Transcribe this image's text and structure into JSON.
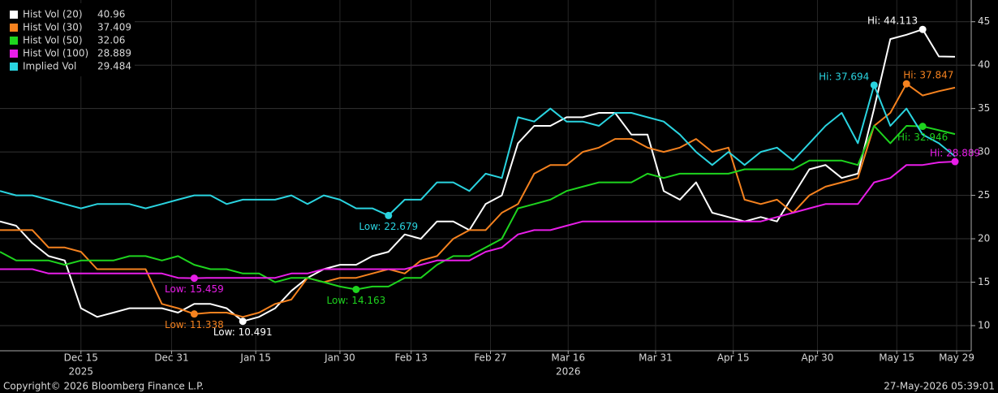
{
  "chart_data": {
    "type": "line",
    "series": [
      {
        "name": "Hist Vol (20)",
        "color": "#ffffff",
        "values": [
          22,
          21.5,
          19.5,
          18,
          17.5,
          12,
          11,
          11.5,
          12,
          12,
          12,
          11.5,
          12.5,
          12.5,
          12,
          10.491,
          11,
          12,
          14,
          15.5,
          16.5,
          17,
          17,
          18,
          18.5,
          20.5,
          20,
          22,
          22,
          21,
          24,
          25,
          31,
          33,
          33,
          34,
          34,
          34.5,
          34.5,
          32,
          32,
          25.5,
          24.5,
          26.5,
          23,
          22.5,
          22,
          22.5,
          22,
          25,
          28,
          28.5,
          27,
          27.5,
          35,
          43,
          43.5,
          44.113,
          41,
          40.96
        ],
        "markers": [
          {
            "x": 15,
            "value": 10.491,
            "label": "Low: 10.491"
          },
          {
            "x": 57,
            "value": 44.113,
            "label": "Hi: 44.113"
          }
        ]
      },
      {
        "name": "Hist Vol (30)",
        "color": "#f5821f",
        "values": [
          21,
          21,
          21,
          19,
          19,
          18.5,
          16.5,
          16.5,
          16.5,
          16.5,
          12.5,
          12,
          11.338,
          11.5,
          11.5,
          11,
          11.5,
          12.5,
          13,
          15.5,
          15,
          15.5,
          15.5,
          16,
          16.5,
          16,
          17.5,
          18,
          20,
          21,
          21,
          23,
          24,
          27.5,
          28.5,
          28.5,
          30,
          30.5,
          31.5,
          31.5,
          30.5,
          30,
          30.5,
          31.5,
          30,
          30.5,
          24.5,
          24,
          24.5,
          23,
          25,
          26,
          26.5,
          27,
          33,
          34.5,
          37.847,
          36.5,
          37,
          37.409
        ],
        "markers": [
          {
            "x": 12,
            "value": 11.338,
            "label": "Low: 11.338"
          },
          {
            "x": 56,
            "value": 37.847,
            "label": "Hi: 37.847"
          }
        ]
      },
      {
        "name": "Hist Vol (50)",
        "color": "#1ed41e",
        "values": [
          18.5,
          17.5,
          17.5,
          17.5,
          17,
          17.5,
          17.5,
          17.5,
          18,
          18,
          17.5,
          18,
          17,
          16.5,
          16.5,
          16,
          16,
          15,
          15.5,
          15.5,
          15,
          14.5,
          14.163,
          14.5,
          14.5,
          15.5,
          15.5,
          17,
          18,
          18,
          19,
          20,
          23.5,
          24,
          24.5,
          25.5,
          26,
          26.5,
          26.5,
          26.5,
          27.5,
          27,
          27.5,
          27.5,
          27.5,
          27.5,
          28,
          28,
          28,
          28,
          29,
          29,
          29,
          28.5,
          33,
          31,
          33,
          32.946,
          32.5,
          32.06
        ],
        "markers": [
          {
            "x": 22,
            "value": 14.163,
            "label": "Low: 14.163"
          },
          {
            "x": 57,
            "value": 32.946,
            "label": "Hi: 32.946"
          }
        ]
      },
      {
        "name": "Hist Vol (100)",
        "color": "#e81ee8",
        "values": [
          16.5,
          16.5,
          16.5,
          16,
          16,
          16,
          16,
          16,
          16,
          16,
          16,
          15.5,
          15.459,
          15.5,
          15.5,
          15.5,
          15.5,
          15.5,
          16,
          16,
          16.5,
          16.5,
          16.5,
          16.5,
          16.5,
          16.5,
          17,
          17.5,
          17.5,
          17.5,
          18.5,
          19,
          20.5,
          21,
          21,
          21.5,
          22,
          22,
          22,
          22,
          22,
          22,
          22,
          22,
          22,
          22,
          22,
          22,
          22.5,
          23,
          23.5,
          24,
          24,
          24,
          26.5,
          27,
          28.5,
          28.5,
          28.8,
          28.889
        ],
        "markers": [
          {
            "x": 12,
            "value": 15.459,
            "label": "Low: 15.459"
          },
          {
            "x": 59,
            "value": 28.889,
            "label": "Hi: 28.889"
          }
        ]
      },
      {
        "name": "Implied Vol",
        "color": "#2ad4e0",
        "values": [
          25.5,
          25,
          25,
          24.5,
          24,
          23.5,
          24,
          24,
          24,
          23.5,
          24,
          24.5,
          25,
          25,
          24,
          24.5,
          24.5,
          24.5,
          25,
          24,
          25,
          24.5,
          23.5,
          23.5,
          22.679,
          24.5,
          24.5,
          26.5,
          26.5,
          25.5,
          27.5,
          27,
          34,
          33.5,
          35,
          33.5,
          33.5,
          33,
          34.5,
          34.5,
          34,
          33.5,
          32,
          30,
          28.5,
          30,
          28.5,
          30,
          30.5,
          29,
          31,
          33,
          34.5,
          31,
          37.694,
          33,
          35,
          32,
          31,
          29.484
        ],
        "markers": [
          {
            "x": 24,
            "value": 22.679,
            "label": "Low: 22.679"
          },
          {
            "x": 54,
            "value": 37.694,
            "label": "Hi: 37.694"
          }
        ]
      }
    ],
    "xlim": [
      0,
      60
    ],
    "xticks": [
      {
        "value": 5,
        "label": "Dec 15"
      },
      {
        "value": 10.6,
        "label": "Dec 31"
      },
      {
        "value": 15.8,
        "label": "Jan 15"
      },
      {
        "value": 21,
        "label": "Jan 30"
      },
      {
        "value": 25.4,
        "label": "Feb 13"
      },
      {
        "value": 30.3,
        "label": "Feb 27"
      },
      {
        "value": 35.1,
        "label": "Mar 16"
      },
      {
        "value": 40.5,
        "label": "Mar 31"
      },
      {
        "value": 45.3,
        "label": "Apr 15"
      },
      {
        "value": 50.5,
        "label": "Apr 30"
      },
      {
        "value": 55.4,
        "label": "May 15"
      },
      {
        "value": 59.1,
        "label": "May 29"
      }
    ],
    "year_labels": [
      {
        "value": 5,
        "label": "2025"
      },
      {
        "value": 35.1,
        "label": "2026"
      }
    ],
    "ylim": [
      7.1,
      47.5
    ],
    "yticks": [
      10,
      15,
      20,
      25,
      30,
      35,
      40,
      45
    ],
    "grid": true,
    "legend": "top-left",
    "copyright": "Copyright© 2026 Bloomberg Finance L.P.",
    "timestamp": "27-May-2026 05:39:01"
  }
}
